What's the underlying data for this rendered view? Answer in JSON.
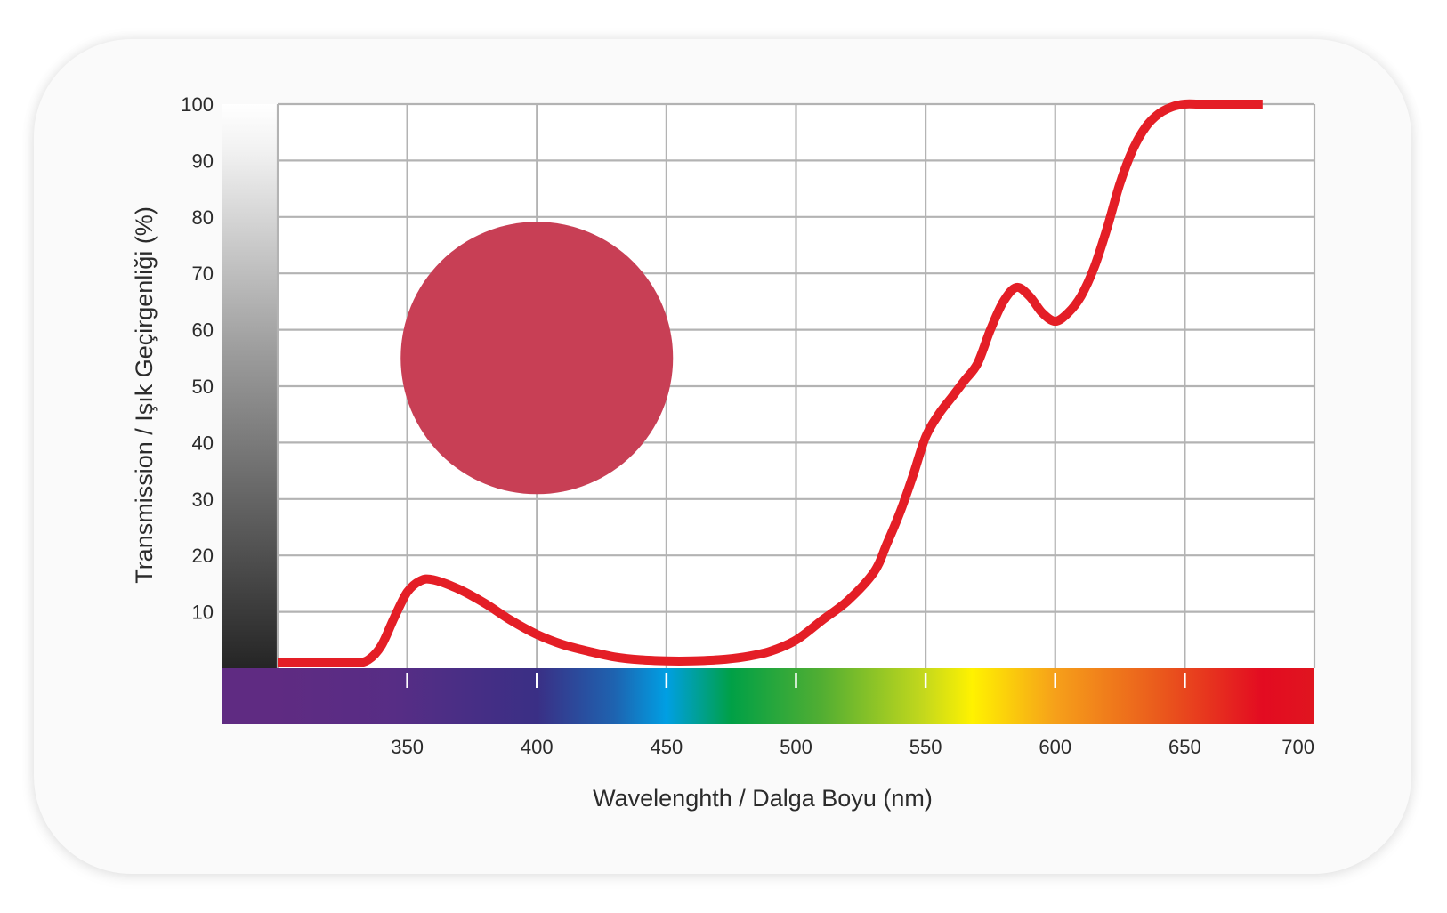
{
  "chart_data": {
    "type": "line",
    "xlabel": "Wavelenghth / Dalga Boyu (nm)",
    "ylabel": "Transmission / Işık Geçirgenliği (%)",
    "xlim": [
      300,
      700
    ],
    "ylim": [
      0,
      100
    ],
    "x_ticks": [
      "350",
      "400",
      "450",
      "500",
      "550",
      "600",
      "650",
      "700"
    ],
    "y_ticks": [
      "10",
      "20",
      "30",
      "40",
      "50",
      "60",
      "70",
      "80",
      "90",
      "100"
    ],
    "grid": true,
    "legend": "none",
    "series": [
      {
        "color": "#e41e26",
        "x": [
          300,
          310,
          320,
          330,
          335,
          340,
          345,
          350,
          355,
          360,
          370,
          380,
          390,
          400,
          410,
          420,
          430,
          440,
          450,
          460,
          470,
          480,
          490,
          500,
          510,
          520,
          530,
          535,
          540,
          545,
          550,
          555,
          560,
          565,
          570,
          575,
          580,
          585,
          590,
          595,
          600,
          605,
          610,
          615,
          620,
          625,
          630,
          635,
          640,
          645,
          650,
          655,
          660,
          665,
          670,
          675,
          680
        ],
        "y": [
          1,
          1,
          1,
          1,
          1.5,
          4,
          9,
          13.5,
          15.5,
          15.7,
          14,
          11.5,
          8.5,
          6,
          4.2,
          3,
          2,
          1.5,
          1.3,
          1.3,
          1.5,
          2,
          3,
          5,
          8.5,
          12,
          17,
          22,
          27.5,
          34,
          41,
          45,
          48,
          51,
          54,
          60,
          65,
          67.5,
          66,
          63,
          61.5,
          63,
          66,
          71,
          78,
          86,
          92,
          96,
          98.3,
          99.5,
          100,
          100,
          100,
          100,
          100,
          100,
          100
        ]
      }
    ],
    "swatch": {
      "color": "#c83f55",
      "center_x": 400,
      "center_y": 55
    },
    "spectrum_stops": [
      {
        "nm": 300,
        "color": "#5f2b82"
      },
      {
        "nm": 345,
        "color": "#572d85"
      },
      {
        "nm": 400,
        "color": "#3a2f85"
      },
      {
        "nm": 430,
        "color": "#1e63b0"
      },
      {
        "nm": 450,
        "color": "#009fe3"
      },
      {
        "nm": 475,
        "color": "#00a046"
      },
      {
        "nm": 510,
        "color": "#52ae32"
      },
      {
        "nm": 550,
        "color": "#c6d91c"
      },
      {
        "nm": 568,
        "color": "#fff200"
      },
      {
        "nm": 600,
        "color": "#f6a01a"
      },
      {
        "nm": 640,
        "color": "#ea5a1c"
      },
      {
        "nm": 680,
        "color": "#e30b21"
      },
      {
        "nm": 700,
        "color": "#e0151f"
      }
    ],
    "colors": {
      "grid": "#b3b3b3",
      "background": "#ffffff",
      "text": "#2b2b2b"
    }
  }
}
